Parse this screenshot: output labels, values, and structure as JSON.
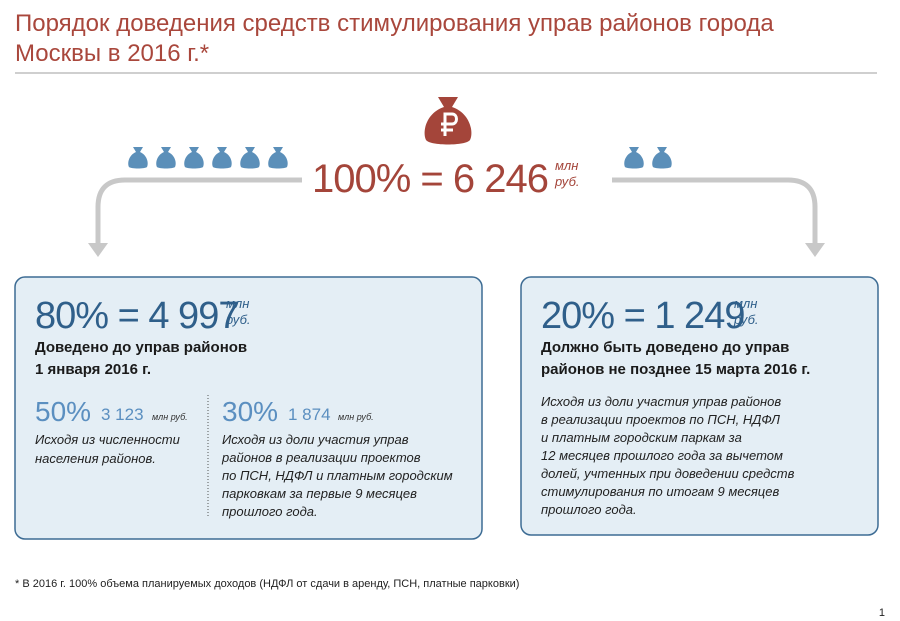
{
  "header": {
    "title_lines": [
      "Порядок доведения средств стимулирования управ районов города",
      "Москвы в 2016 г.*"
    ]
  },
  "total": {
    "amount": "100% = 6 246",
    "unit_lines": [
      "млн",
      "руб."
    ]
  },
  "left_box": {
    "amount": "80% = 4 997",
    "unit_lines": [
      "млн",
      "руб."
    ],
    "heading_lines": [
      "Доведено до управ районов",
      "1 января 2016 г."
    ],
    "parts": [
      {
        "percent": "50%",
        "amount": "3 123",
        "unit": "млн руб.",
        "note_lines": [
          "Исходя из численности",
          "населения районов."
        ]
      },
      {
        "percent": "30%",
        "amount": "1 874",
        "unit": "млн руб.",
        "note_lines": [
          "Исходя из доли участия управ",
          "районов в реализации проектов",
          "по ПСН, НДФЛ и платным городским",
          "парковкам за первые 9 месяцев",
          "прошлого года."
        ]
      }
    ]
  },
  "right_box": {
    "amount": "20% = 1 249",
    "unit_lines": [
      "млн",
      "руб."
    ],
    "heading_lines": [
      "Должно быть доведено до управ",
      "районов не позднее 15 марта 2016 г."
    ],
    "note_lines": [
      "Исходя из доли участия управ районов",
      "в реализации проектов по ПСН, НДФЛ",
      "и платным городским паркам за",
      "12 месяцев прошлого года за вычетом",
      "долей, учтенных при доведении средств",
      "стимулирования по итогам 9 месяцев",
      "прошлого года."
    ]
  },
  "footnote": "* В 2016 г. 100% объема планируемых доходов (НДФЛ от сдачи в аренду, ПСН, платные парковки)",
  "page_number": "1"
}
